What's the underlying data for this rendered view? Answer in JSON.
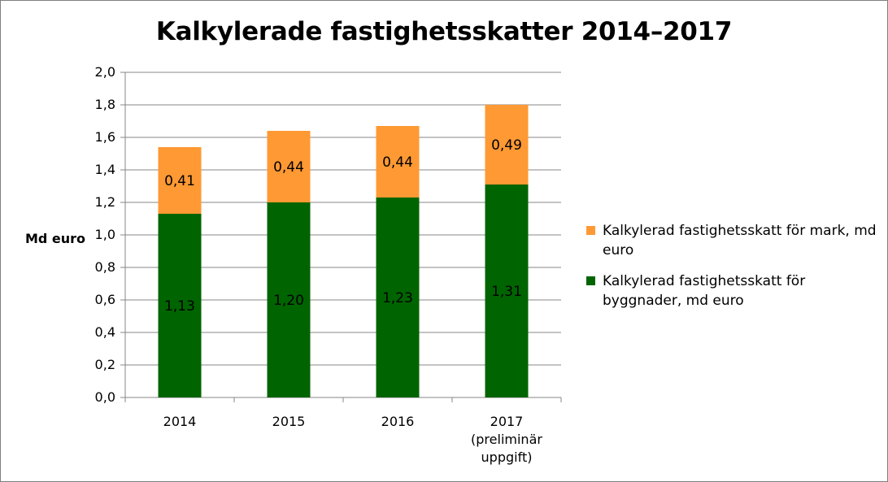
{
  "chart_data": {
    "type": "bar",
    "stacked": true,
    "title": "Kalkylerade fastighetsskatter 2014–2017",
    "ylabel": "Md euro",
    "xlabel": "",
    "ylim": [
      0,
      2.0
    ],
    "yticks": [
      "0,0",
      "0,2",
      "0,4",
      "0,6",
      "0,8",
      "1,0",
      "1,2",
      "1,4",
      "1,6",
      "1,8",
      "2,0"
    ],
    "categories": [
      [
        "2014"
      ],
      [
        "2015"
      ],
      [
        "2016"
      ],
      [
        "2017",
        "(preliminär",
        "uppgift)"
      ]
    ],
    "series": [
      {
        "name": "Kalkylerad fastighetsskatt för byggnader, md euro",
        "legend_lines": [
          "Kalkylerad fastighetsskatt för",
          "byggnader, md euro"
        ],
        "color": "#006400",
        "values": [
          1.13,
          1.2,
          1.23,
          1.31
        ],
        "labels": [
          "1,13",
          "1,20",
          "1,23",
          "1,31"
        ]
      },
      {
        "name": "Kalkylerad fastighetsskatt för mark, md euro",
        "legend_lines": [
          "Kalkylerad fastighetsskatt för mark, md",
          "euro"
        ],
        "color": "#ff9933",
        "values": [
          0.41,
          0.44,
          0.44,
          0.49
        ],
        "labels": [
          "0,41",
          "0,44",
          "0,44",
          "0,49"
        ]
      }
    ],
    "grid": true,
    "legend_position": "right"
  }
}
